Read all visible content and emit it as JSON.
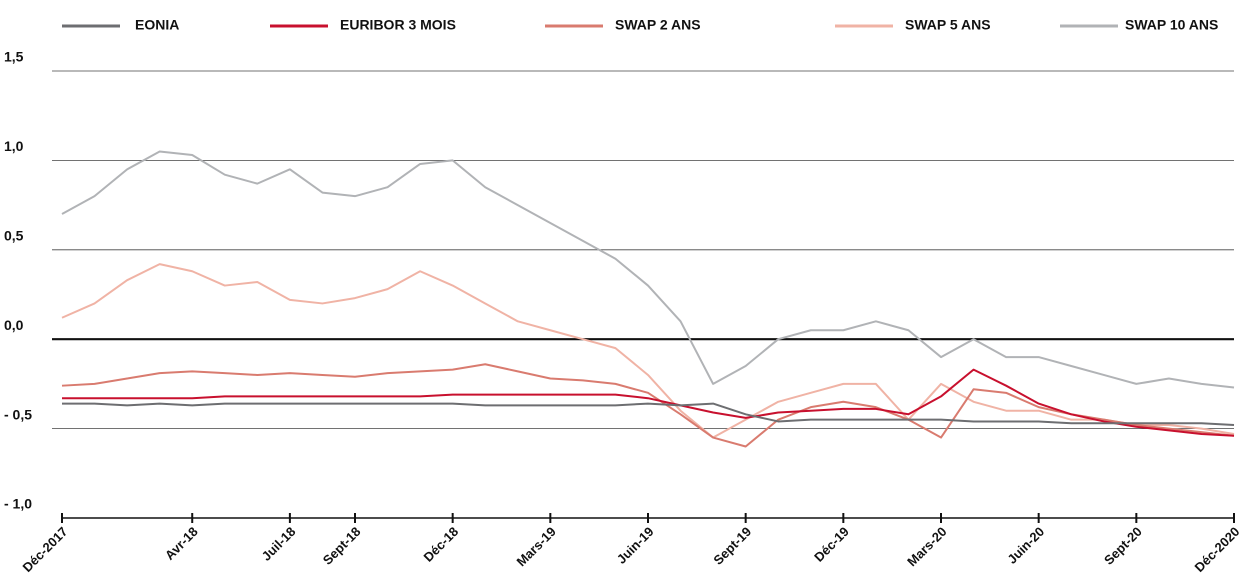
{
  "chart_data": {
    "type": "line",
    "categories": [
      "Déc-2017",
      null,
      null,
      null,
      "Avr-18",
      null,
      null,
      "Juil-18",
      null,
      "Sept-18",
      null,
      null,
      "Déc-18",
      null,
      null,
      "Mars-19",
      null,
      null,
      "Juin-19",
      null,
      null,
      "Sept-19",
      null,
      null,
      "Déc-19",
      null,
      null,
      "Mars-20",
      null,
      null,
      "Juin-20",
      null,
      null,
      "Sept-20",
      null,
      null,
      "Déc-2020"
    ],
    "ylim": [
      -1.0,
      1.5
    ],
    "yticks": [
      {
        "value": 1.5,
        "label": "1,5"
      },
      {
        "value": 1.0,
        "label": "1,0"
      },
      {
        "value": 0.5,
        "label": "0,5"
      },
      {
        "value": 0.0,
        "label": "0,0"
      },
      {
        "value": -0.5,
        "label": "- 0,5"
      },
      {
        "value": -1.0,
        "label": "- 1,0"
      }
    ],
    "grid": true,
    "legend": "top",
    "series": [
      {
        "name": "EONIA",
        "color": "#6d6e71",
        "values": [
          -0.36,
          -0.36,
          -0.37,
          -0.36,
          -0.37,
          -0.36,
          -0.36,
          -0.36,
          -0.36,
          -0.36,
          -0.36,
          -0.36,
          -0.36,
          -0.37,
          -0.37,
          -0.37,
          -0.37,
          -0.37,
          -0.36,
          -0.37,
          -0.36,
          -0.42,
          -0.46,
          -0.45,
          -0.45,
          -0.45,
          -0.45,
          -0.45,
          -0.46,
          -0.46,
          -0.46,
          -0.47,
          -0.47,
          -0.47,
          -0.47,
          -0.47,
          -0.48
        ]
      },
      {
        "name": "EURIBOR 3 MOIS",
        "color": "#c8102e",
        "values": [
          -0.33,
          -0.33,
          -0.33,
          -0.33,
          -0.33,
          -0.32,
          -0.32,
          -0.32,
          -0.32,
          -0.32,
          -0.32,
          -0.32,
          -0.31,
          -0.31,
          -0.31,
          -0.31,
          -0.31,
          -0.31,
          -0.33,
          -0.37,
          -0.41,
          -0.44,
          -0.41,
          -0.4,
          -0.39,
          -0.39,
          -0.42,
          -0.32,
          -0.17,
          -0.26,
          -0.36,
          -0.42,
          -0.46,
          -0.49,
          -0.51,
          -0.53,
          -0.54
        ]
      },
      {
        "name": "SWAP 2 ANS",
        "color": "#d97b6f",
        "values": [
          -0.26,
          -0.25,
          -0.22,
          -0.19,
          -0.18,
          -0.19,
          -0.2,
          -0.19,
          -0.2,
          -0.21,
          -0.19,
          -0.18,
          -0.17,
          -0.14,
          -0.18,
          -0.22,
          -0.23,
          -0.25,
          -0.3,
          -0.42,
          -0.55,
          -0.6,
          -0.45,
          -0.38,
          -0.35,
          -0.38,
          -0.45,
          -0.55,
          -0.28,
          -0.3,
          -0.38,
          -0.42,
          -0.45,
          -0.48,
          -0.5,
          -0.52,
          -0.54
        ]
      },
      {
        "name": "SWAP 5 ANS",
        "color": "#f0b3a5",
        "values": [
          0.12,
          0.2,
          0.33,
          0.42,
          0.38,
          0.3,
          0.32,
          0.22,
          0.2,
          0.23,
          0.28,
          0.38,
          0.3,
          0.2,
          0.1,
          0.05,
          0.0,
          -0.05,
          -0.2,
          -0.4,
          -0.55,
          -0.45,
          -0.35,
          -0.3,
          -0.25,
          -0.25,
          -0.45,
          -0.25,
          -0.35,
          -0.4,
          -0.4,
          -0.45,
          -0.45,
          -0.48,
          -0.48,
          -0.5,
          -0.53
        ]
      },
      {
        "name": "SWAP 10 ANS",
        "color": "#b1b3b6",
        "values": [
          0.7,
          0.8,
          0.95,
          1.05,
          1.03,
          0.92,
          0.87,
          0.95,
          0.82,
          0.8,
          0.85,
          0.98,
          1.0,
          0.85,
          0.75,
          0.65,
          0.55,
          0.45,
          0.3,
          0.1,
          -0.25,
          -0.15,
          0.0,
          0.05,
          0.05,
          0.1,
          0.05,
          -0.1,
          0.0,
          -0.1,
          -0.1,
          -0.15,
          -0.2,
          -0.25,
          -0.22,
          -0.25,
          -0.27
        ]
      }
    ]
  }
}
